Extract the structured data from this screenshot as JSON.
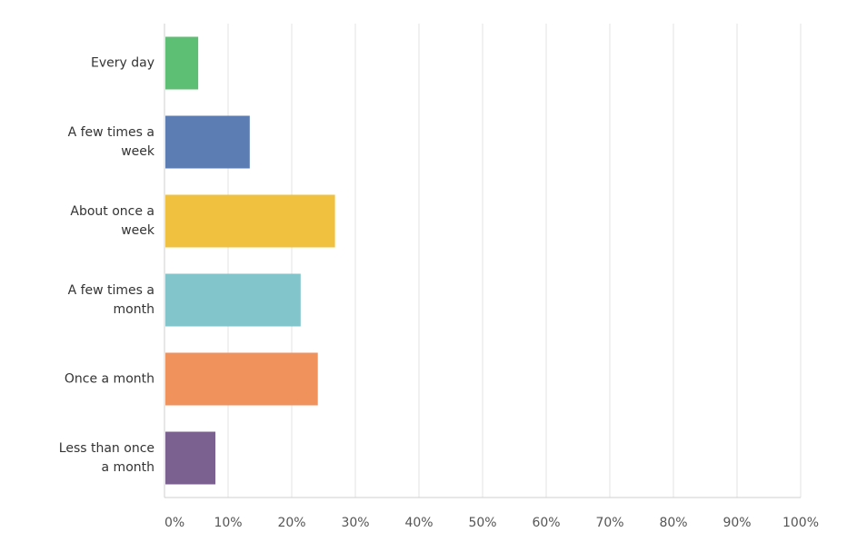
{
  "chart_data": {
    "type": "bar",
    "orientation": "horizontal",
    "categories": [
      [
        "Every day"
      ],
      [
        "A few times a",
        "week"
      ],
      [
        "About once a",
        "week"
      ],
      [
        "A few times a",
        "month"
      ],
      [
        "Once a month"
      ],
      [
        "Less than once",
        "a month"
      ]
    ],
    "values": [
      5.3,
      13.4,
      26.8,
      21.4,
      24.1,
      8.0
    ],
    "colors": [
      "#5cbf73",
      "#5b7db4",
      "#f0c13f",
      "#82c5cb",
      "#ef925c",
      "#7b6190"
    ],
    "xlim": [
      0,
      100
    ],
    "xticks": [
      "0%",
      "10%",
      "20%",
      "30%",
      "40%",
      "50%",
      "60%",
      "70%",
      "80%",
      "90%",
      "100%"
    ],
    "grid": true,
    "title": "",
    "xlabel": "",
    "ylabel": ""
  }
}
